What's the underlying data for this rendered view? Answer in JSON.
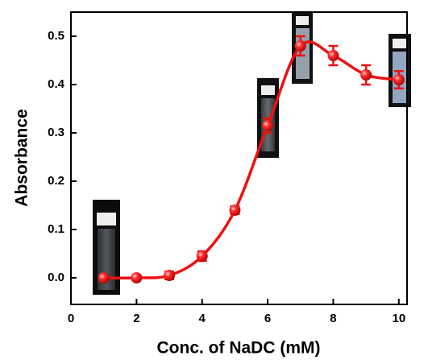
{
  "chart_data": {
    "type": "line",
    "x_label": "Conc. of NaDC (mM)",
    "y_label": "Absorbance",
    "x": [
      1,
      2,
      3,
      4,
      5,
      6,
      7,
      8,
      9,
      10
    ],
    "values": [
      0.0,
      0.0,
      0.005,
      0.045,
      0.14,
      0.315,
      0.48,
      0.46,
      0.42,
      0.41
    ],
    "errors": [
      0.005,
      0.005,
      0.008,
      0.01,
      0.008,
      0.015,
      0.02,
      0.02,
      0.02,
      0.018
    ],
    "color": "#ee1111",
    "xlim": [
      0,
      10.25
    ],
    "ylim": [
      -0.055,
      0.55
    ],
    "xticks": [
      0,
      2,
      4,
      6,
      8,
      10
    ],
    "yticks": [
      {
        "value": 0,
        "label": "0.0"
      },
      0.1,
      0.2,
      0.3,
      0.4,
      0.5
    ]
  }
}
